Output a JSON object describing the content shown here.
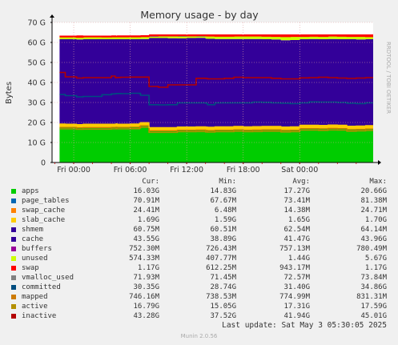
{
  "chart_data": {
    "type": "area",
    "title": "Memory usage - by day",
    "ylabel": "Bytes",
    "ylim": [
      0,
      70
    ],
    "y_unit": "G",
    "yticks": [
      "0",
      "10 G",
      "20 G",
      "30 G",
      "40 G",
      "50 G",
      "60 G",
      "70 G"
    ],
    "xticks": [
      "Fri 00:00",
      "Fri 06:00",
      "Fri 12:00",
      "Fri 18:00",
      "Sat 00:00"
    ],
    "grid": true,
    "side_label": "RRDTOOL / TOBI OETIKER",
    "stack_samples": {
      "x_hours": [
        -1.5,
        -0.9,
        0.3,
        1.0,
        3.0,
        4.0,
        4.4,
        4.5,
        4.6,
        5.0,
        6.0,
        7.0,
        7.1,
        8.0,
        9.0,
        10.0,
        11.0,
        12.0,
        13.0,
        14.0,
        14.2,
        15.0,
        16.0,
        17.0,
        18.0,
        19.0,
        20.0,
        21.0,
        22.0,
        23.0,
        24.0,
        25.0,
        26.0,
        27.0,
        28.0,
        29.0,
        30.0,
        31.0
      ],
      "active": [
        16.8,
        16.8,
        16.6,
        16.7,
        16.7,
        16.8,
        16.8,
        16.9,
        16.8,
        16.8,
        16.9,
        17.3,
        17.6,
        15.1,
        15.1,
        15.1,
        15.4,
        15.4,
        15.5,
        15.3,
        15.2,
        15.4,
        15.4,
        15.6,
        15.4,
        15.5,
        15.6,
        15.6,
        15.3,
        15.4,
        16.2,
        16.2,
        16.1,
        16.3,
        16.2,
        15.7,
        15.8,
        16.0
      ],
      "mapped": [
        0.75,
        0.75,
        0.75,
        0.75,
        0.75,
        0.75,
        0.75,
        0.75,
        0.75,
        0.75,
        0.75,
        0.75,
        0.75,
        0.75,
        0.75,
        0.75,
        0.75,
        0.75,
        0.75,
        0.75,
        0.75,
        0.75,
        0.75,
        0.75,
        0.75,
        0.75,
        0.75,
        0.75,
        0.75,
        0.75,
        0.75,
        0.75,
        0.75,
        0.75,
        0.75,
        0.75,
        0.75,
        0.75
      ],
      "slab_cache": [
        1.7,
        1.6,
        1.6,
        1.7,
        1.7,
        1.6,
        1.6,
        1.7,
        1.6,
        1.6,
        1.6,
        1.6,
        1.6,
        1.6,
        1.6,
        1.6,
        1.6,
        1.6,
        1.6,
        1.7,
        1.7,
        1.7,
        1.7,
        1.7,
        1.7,
        1.7,
        1.7,
        1.7,
        1.7,
        1.7,
        1.7,
        1.7,
        1.7,
        1.7,
        1.7,
        1.7,
        1.7,
        1.7
      ],
      "cache_top": [
        61.6,
        61.6,
        61.5,
        61.6,
        61.6,
        61.6,
        61.6,
        61.6,
        61.6,
        61.6,
        61.6,
        61.6,
        61.7,
        62.2,
        62.2,
        62.1,
        62.0,
        62.2,
        62.3,
        61.9,
        61.8,
        61.7,
        61.7,
        61.7,
        61.7,
        61.7,
        61.6,
        61.5,
        61.1,
        61.2,
        61.6,
        61.7,
        61.6,
        61.7,
        61.6,
        61.6,
        61.5,
        61.6
      ],
      "unused_top": [
        62.7,
        62.7,
        62.6,
        62.8,
        62.7,
        62.8,
        62.8,
        62.9,
        62.8,
        62.8,
        62.8,
        62.8,
        62.9,
        63.3,
        63.3,
        63.3,
        63.4,
        63.3,
        63.4,
        63.3,
        63.2,
        63.1,
        63.1,
        63.2,
        63.2,
        63.2,
        63.1,
        63.0,
        62.9,
        63.0,
        63.0,
        63.1,
        63.0,
        63.2,
        63.1,
        63.0,
        63.0,
        62.9
      ],
      "unused_gap_top": [
        62.7,
        62.7,
        62.6,
        62.8,
        62.7,
        62.8,
        62.8,
        62.9,
        62.8,
        62.8,
        62.8,
        62.8,
        62.9,
        62.9,
        63.0,
        63.0,
        63.0,
        63.0,
        63.0,
        63.0,
        63.0,
        63.0,
        63.0,
        63.0,
        63.0,
        63.0,
        63.0,
        63.0,
        63.0,
        63.0,
        63.0,
        63.0,
        63.0,
        63.0,
        63.0,
        63.0,
        63.0,
        63.0
      ],
      "inactive_line": [
        45.0,
        42.8,
        42.2,
        42.4,
        42.4,
        43.2,
        42.5,
        42.4,
        42.5,
        42.6,
        42.7,
        42.6,
        42.7,
        38.0,
        37.6,
        38.8,
        38.8,
        38.8,
        42.1,
        42.0,
        41.8,
        41.8,
        42.1,
        42.6,
        42.4,
        42.4,
        42.4,
        42.1,
        41.8,
        41.8,
        42.3,
        42.4,
        42.6,
        42.4,
        42.2,
        42.0,
        42.2,
        42.4
      ],
      "committed_line": [
        34.0,
        33.4,
        32.8,
        33.0,
        33.9,
        34.3,
        34.4,
        34.4,
        34.5,
        34.4,
        34.6,
        34.5,
        33.6,
        28.9,
        28.8,
        28.9,
        29.8,
        29.8,
        29.8,
        29.6,
        28.9,
        29.8,
        29.8,
        29.8,
        29.8,
        30.2,
        30.1,
        29.8,
        29.6,
        29.4,
        29.8,
        30.3,
        30.2,
        30.2,
        30.0,
        29.6,
        29.4,
        29.8
      ],
      "swap_top": [
        63.4,
        63.4,
        63.5,
        63.4,
        63.4,
        63.5,
        63.5,
        63.4,
        63.5,
        63.5,
        63.5,
        63.5,
        63.6,
        64.0,
        64.0,
        64.0,
        64.0,
        64.0,
        64.0,
        64.0,
        64.0,
        64.0,
        64.0,
        64.0,
        64.0,
        64.0,
        64.0,
        64.0,
        64.0,
        64.0,
        64.0,
        64.0,
        64.0,
        64.0,
        64.0,
        64.0,
        64.0,
        64.0
      ]
    },
    "legend_header": [
      "Cur:",
      "Min:",
      "Avg:",
      "Max:"
    ],
    "legend": [
      {
        "name": "apps",
        "color": "#00cc00",
        "cur": "16.03G",
        "min": "14.83G",
        "avg": "17.27G",
        "max": "20.66G"
      },
      {
        "name": "page_tables",
        "color": "#0066b3",
        "cur": "70.91M",
        "min": "67.67M",
        "avg": "73.41M",
        "max": "81.38M"
      },
      {
        "name": "swap_cache",
        "color": "#ff8000",
        "cur": "24.41M",
        "min": "6.48M",
        "avg": "14.38M",
        "max": "24.71M"
      },
      {
        "name": "slab_cache",
        "color": "#ffcc00",
        "cur": "1.69G",
        "min": "1.59G",
        "avg": "1.65G",
        "max": "1.70G"
      },
      {
        "name": "shmem",
        "color": "#330099",
        "cur": "60.75M",
        "min": "60.51M",
        "avg": "62.54M",
        "max": "64.14M"
      },
      {
        "name": "cache",
        "color": "#330099",
        "cur": "43.55G",
        "min": "38.89G",
        "avg": "41.47G",
        "max": "43.96G"
      },
      {
        "name": "buffers",
        "color": "#990099",
        "cur": "752.30M",
        "min": "726.43M",
        "avg": "757.13M",
        "max": "780.49M"
      },
      {
        "name": "unused",
        "color": "#ccff00",
        "cur": "574.33M",
        "min": "407.77M",
        "avg": "1.44G",
        "max": "5.67G"
      },
      {
        "name": "swap",
        "color": "#ff0000",
        "cur": "1.17G",
        "min": "612.25M",
        "avg": "943.17M",
        "max": "1.17G"
      },
      {
        "name": "vmalloc_used",
        "color": "#808080",
        "cur": "71.93M",
        "min": "71.45M",
        "avg": "72.57M",
        "max": "73.84M"
      },
      {
        "name": "committed",
        "color": "#004d80",
        "cur": "30.35G",
        "min": "28.74G",
        "avg": "31.40G",
        "max": "34.86G"
      },
      {
        "name": "mapped",
        "color": "#cc7a00",
        "cur": "746.16M",
        "min": "738.53M",
        "avg": "774.99M",
        "max": "831.31M"
      },
      {
        "name": "active",
        "color": "#b38f00",
        "cur": "16.79G",
        "min": "15.05G",
        "avg": "17.31G",
        "max": "17.59G"
      },
      {
        "name": "inactive",
        "color": "#b30000",
        "cur": "43.28G",
        "min": "37.52G",
        "avg": "41.94G",
        "max": "45.01G"
      }
    ],
    "last_update": "Last update: Sat May  3 05:30:05 2025",
    "generator": "Munin 2.0.56"
  }
}
